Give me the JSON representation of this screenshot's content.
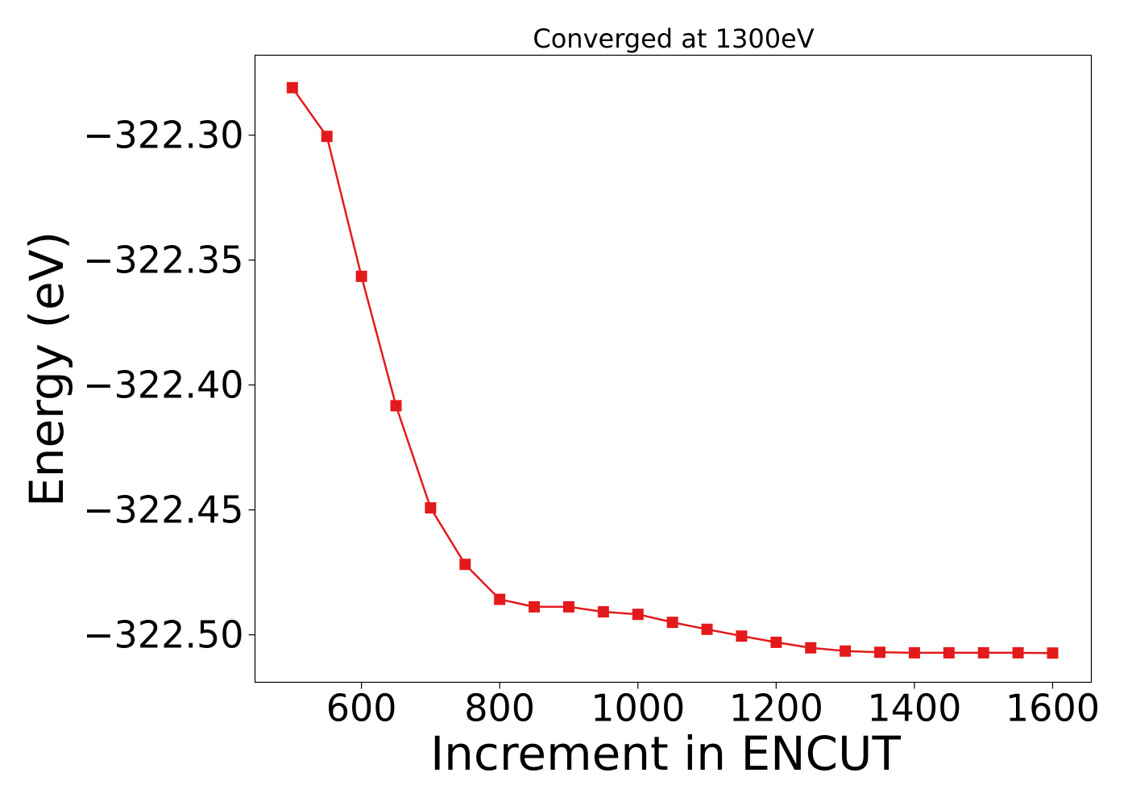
{
  "chart_data": {
    "type": "line",
    "title": "Converged at 1300eV",
    "xlabel": "Increment in ENCUT",
    "ylabel": "Energy (eV)",
    "xlim": [
      446,
      1656
    ],
    "ylim": [
      -322.519,
      -322.268
    ],
    "xticks": [
      600,
      800,
      1000,
      1200,
      1400,
      1600
    ],
    "xtick_labels": [
      "600",
      "800",
      "1000",
      "1200",
      "1400",
      "1600"
    ],
    "yticks": [
      -322.3,
      -322.35,
      -322.4,
      -322.45,
      -322.5
    ],
    "ytick_labels": [
      "−322.30",
      "−322.35",
      "−322.40",
      "−322.45",
      "−322.50"
    ],
    "grid": false,
    "series": [
      {
        "color": "#e31a1c",
        "marker": "square",
        "x": [
          500,
          550,
          600,
          650,
          700,
          750,
          800,
          850,
          900,
          950,
          1000,
          1050,
          1100,
          1150,
          1200,
          1250,
          1300,
          1350,
          1400,
          1450,
          1500,
          1550,
          1600
        ],
        "y": [
          -322.281,
          -322.3005,
          -322.3565,
          -322.4083,
          -322.4492,
          -322.4718,
          -322.4858,
          -322.4888,
          -322.4888,
          -322.4908,
          -322.4918,
          -322.495,
          -322.4978,
          -322.5005,
          -322.503,
          -322.5052,
          -322.5065,
          -322.507,
          -322.5072,
          -322.5072,
          -322.5072,
          -322.5072,
          -322.5073
        ]
      }
    ]
  }
}
